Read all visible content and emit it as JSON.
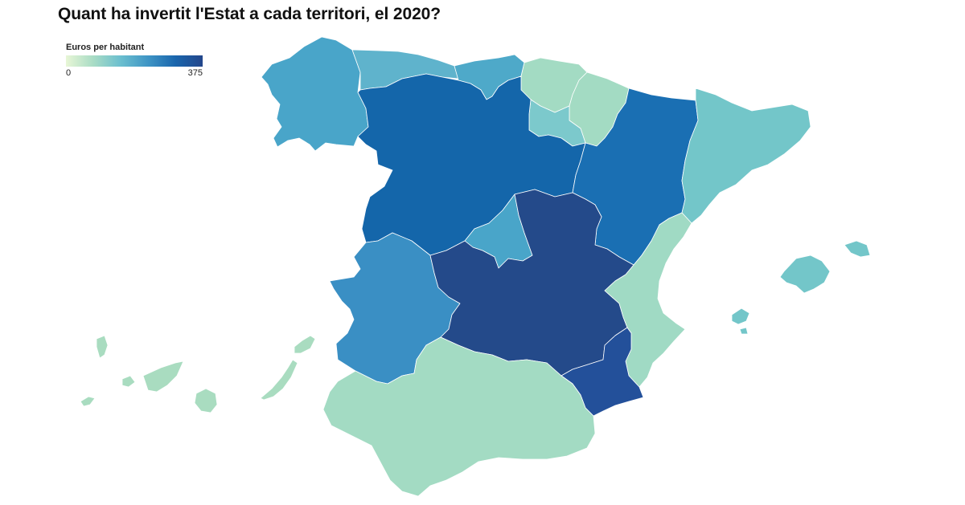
{
  "title": "Quant ha invertit l'Estat a cada territori, el 2020?",
  "legend": {
    "title": "Euros per habitant",
    "min_label": "0",
    "max_label": "375",
    "min_value": 0,
    "max_value": 375,
    "colors": [
      "#e8f6d6",
      "#a9dcc5",
      "#6bbfcf",
      "#3f95c5",
      "#1a66ad",
      "#23468b"
    ]
  },
  "map": {
    "type": "choropleth",
    "unit": "Euros per habitant",
    "regions": [
      {
        "id": "galicia",
        "color": "#49a5c9"
      },
      {
        "id": "asturias",
        "color": "#5fb3cc"
      },
      {
        "id": "cantabria",
        "color": "#4ea9c9"
      },
      {
        "id": "pais-basc",
        "color": "#a3dbc3"
      },
      {
        "id": "navarra",
        "color": "#a3dbc3"
      },
      {
        "id": "la-rioja",
        "color": "#7cc9cc"
      },
      {
        "id": "castella-i-lleo",
        "color": "#1466aa"
      },
      {
        "id": "arago",
        "color": "#1a6fb3"
      },
      {
        "id": "catalunya",
        "color": "#73c6c9"
      },
      {
        "id": "madrid",
        "color": "#49a5c9"
      },
      {
        "id": "extremadura",
        "color": "#3a8fc4"
      },
      {
        "id": "castella-la-manxa",
        "color": "#244a8a"
      },
      {
        "id": "pais-valencia",
        "color": "#a0dac4"
      },
      {
        "id": "murcia",
        "color": "#23509a"
      },
      {
        "id": "andalusia",
        "color": "#a3dbc3"
      },
      {
        "id": "illes-balears",
        "color": "#73c6c9"
      },
      {
        "id": "canaries",
        "color": "#a9dcc0"
      }
    ]
  }
}
